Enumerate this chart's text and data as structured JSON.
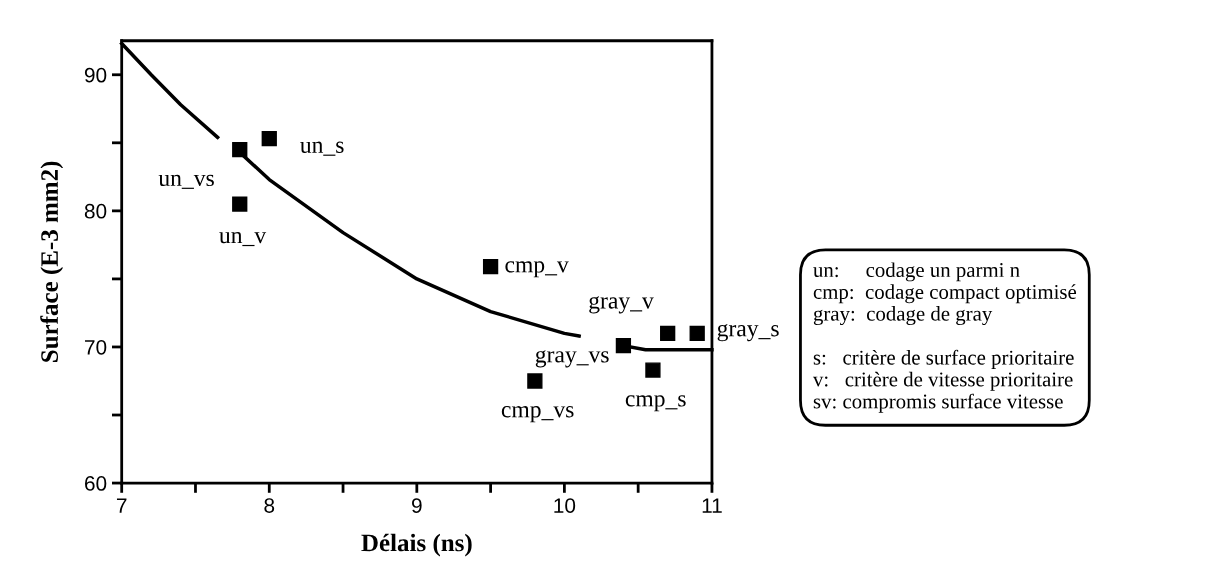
{
  "chart_data": {
    "type": "scatter",
    "xlabel": "Délais (ns)",
    "ylabel": "Surface (E-3 mm2)",
    "xlim": [
      7,
      11
    ],
    "ylim": [
      60,
      92.5
    ],
    "xticks": [
      7,
      {
        "value": 7.5,
        "label": null
      },
      8,
      {
        "value": 8.5,
        "label": null
      },
      9,
      {
        "value": 9.5,
        "label": null
      },
      10,
      {
        "value": 10.5,
        "label": null
      },
      11
    ],
    "yticks": [
      60,
      {
        "value": 65,
        "label": null
      },
      70,
      {
        "value": 75,
        "label": null
      },
      80,
      {
        "value": 85,
        "label": null
      },
      90
    ],
    "grid": false,
    "legend": false,
    "marker": "square",
    "series": [
      {
        "color": "#000000",
        "x": [
          7.8,
          8.0,
          7.8,
          9.5,
          9.8,
          10.4,
          10.7,
          10.9,
          10.6
        ],
        "values": [
          84.5,
          85.3,
          80.5,
          75.9,
          67.5,
          70.1,
          71.0,
          71.0,
          68.3
        ]
      },
      {
        "type": "line",
        "color": "#000000",
        "marker": "none",
        "line_style": "solid",
        "x": [
          7.0,
          7.2,
          7.4,
          7.65,
          7.7,
          7.8,
          8.0,
          8.5,
          9.0,
          9.5,
          10.0,
          10.1,
          10.3,
          10.4,
          10.55,
          11.0
        ],
        "values": [
          92.3,
          90.0,
          87.8,
          85.4,
          null,
          84.3,
          82.3,
          78.4,
          75.0,
          72.6,
          71.0,
          70.8,
          null,
          70.1,
          69.8,
          69.8
        ]
      }
    ],
    "annotations": [
      {
        "text": "un_vs",
        "x": 7.8,
        "y": 84.5
      },
      {
        "text": "un_s",
        "x": 8.0,
        "y": 85.3
      },
      {
        "text": "un_v",
        "x": 7.8,
        "y": 80.5
      },
      {
        "text": "cmp_v",
        "x": 9.5,
        "y": 75.9
      },
      {
        "text": "cmp_vs",
        "x": 9.8,
        "y": 67.5
      },
      {
        "text": "gray_vs",
        "x": 10.4,
        "y": 70.1
      },
      {
        "text": "gray_v",
        "x": 10.7,
        "y": 71.0
      },
      {
        "text": "gray_s",
        "x": 10.9,
        "y": 71.0
      },
      {
        "text": "cmp_s",
        "x": 10.6,
        "y": 68.3
      },
      "un:     codage un parmi n\ncmp:  codage compact optimisé\ngray:  codage de gray\n\ns:   critère de surface prioritaire\nv:   critère de vitesse prioritaire\nsv: compromis surface vitesse"
    ]
  }
}
